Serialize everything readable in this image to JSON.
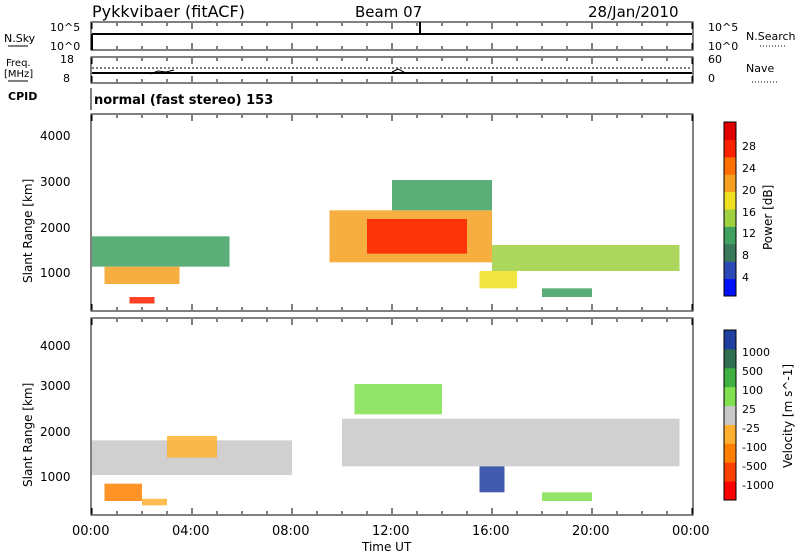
{
  "header": {
    "title": "Pykkvibaer (fitACF)",
    "beam": "Beam 07",
    "date": "28/Jan/2010"
  },
  "nsky_panel": {
    "left_label": "N.Sky",
    "left_ticks": [
      "10^5",
      "10^0"
    ],
    "right_ticks": [
      "10^5",
      "10^0"
    ],
    "right_label": "N.Search"
  },
  "freq_panel": {
    "left_label_1": "Freq.",
    "left_label_2": "[MHz]",
    "left_ticks": [
      "18",
      "8"
    ],
    "right_ticks": [
      "60",
      "0"
    ],
    "right_label": "Nave"
  },
  "cpid": {
    "label": "CPID",
    "value": "normal (fast stereo) 153"
  },
  "x_axis": {
    "label": "Time UT",
    "ticks": [
      "00:00",
      "04:00",
      "08:00",
      "12:00",
      "16:00",
      "20:00",
      "00:00"
    ]
  },
  "y_axis": {
    "label": "Slant Range [km]",
    "ticks": [
      "1000",
      "2000",
      "3000",
      "4000"
    ]
  },
  "colors": {
    "scale": [
      "#0010ff",
      "#2d49b8",
      "#3a7a5a",
      "#40a060",
      "#9fd040",
      "#f0e020",
      "#f6a020",
      "#ff7000",
      "#ff2000",
      "#e00000"
    ],
    "velocity_scale": [
      "#ff0000",
      "#ff4000",
      "#ff8000",
      "#ffb030",
      "#c8c8c8",
      "#80e050",
      "#40b040",
      "#307050",
      "#2040a0"
    ]
  },
  "chart_data": [
    {
      "type": "heatmap",
      "title": "Power",
      "colorbar_label": "Power [dB]",
      "colorbar_ticks": [
        "28",
        "24",
        "20",
        "16",
        "12",
        "8",
        "4"
      ],
      "colorbar_range": [
        0,
        32
      ],
      "x_unit": "hours UT",
      "ylabel": "Slant Range [km]",
      "ylim": [
        200,
        4700
      ],
      "xlim": [
        0,
        24
      ],
      "regions": [
        {
          "x": [
            0,
            5.5
          ],
          "y": [
            1200,
            1900
          ],
          "value": 12
        },
        {
          "x": [
            0.5,
            3.5
          ],
          "y": [
            800,
            1200
          ],
          "value": 22
        },
        {
          "x": [
            1.5,
            2.5
          ],
          "y": [
            350,
            500
          ],
          "value": 26
        },
        {
          "x": [
            9.5,
            16
          ],
          "y": [
            1300,
            2500
          ],
          "value": 22
        },
        {
          "x": [
            11,
            15
          ],
          "y": [
            1500,
            2300
          ],
          "value": 28
        },
        {
          "x": [
            12,
            16
          ],
          "y": [
            2500,
            3200
          ],
          "value": 12
        },
        {
          "x": [
            16,
            23.5
          ],
          "y": [
            1100,
            1700
          ],
          "value": 14
        },
        {
          "x": [
            15.5,
            17
          ],
          "y": [
            700,
            1100
          ],
          "value": 18
        },
        {
          "x": [
            18,
            20
          ],
          "y": [
            500,
            700
          ],
          "value": 10
        }
      ]
    },
    {
      "type": "heatmap",
      "title": "Velocity",
      "colorbar_label": "Velocity [m s^-1]",
      "colorbar_ticks": [
        "1000",
        "500",
        "100",
        "25",
        "-25",
        "-100",
        "-500",
        "-1000"
      ],
      "colorbar_range": [
        -1000,
        1000
      ],
      "x_unit": "hours UT",
      "ylabel": "Slant Range [km]",
      "ylim": [
        200,
        4700
      ],
      "xlim": [
        0,
        24
      ],
      "regions": [
        {
          "x": [
            0,
            8
          ],
          "y": [
            1100,
            1900
          ],
          "value": 0
        },
        {
          "x": [
            3,
            5
          ],
          "y": [
            1500,
            2000
          ],
          "value": -300
        },
        {
          "x": [
            0.5,
            2
          ],
          "y": [
            500,
            900
          ],
          "value": -400
        },
        {
          "x": [
            2,
            3
          ],
          "y": [
            400,
            550
          ],
          "value": -300
        },
        {
          "x": [
            10,
            23.5
          ],
          "y": [
            1300,
            2400
          ],
          "value": 0
        },
        {
          "x": [
            10.5,
            14
          ],
          "y": [
            2500,
            3200
          ],
          "value": 200
        },
        {
          "x": [
            15.5,
            16.5
          ],
          "y": [
            700,
            1300
          ],
          "value": 900
        },
        {
          "x": [
            18,
            20
          ],
          "y": [
            500,
            700
          ],
          "value": 200
        }
      ]
    }
  ]
}
